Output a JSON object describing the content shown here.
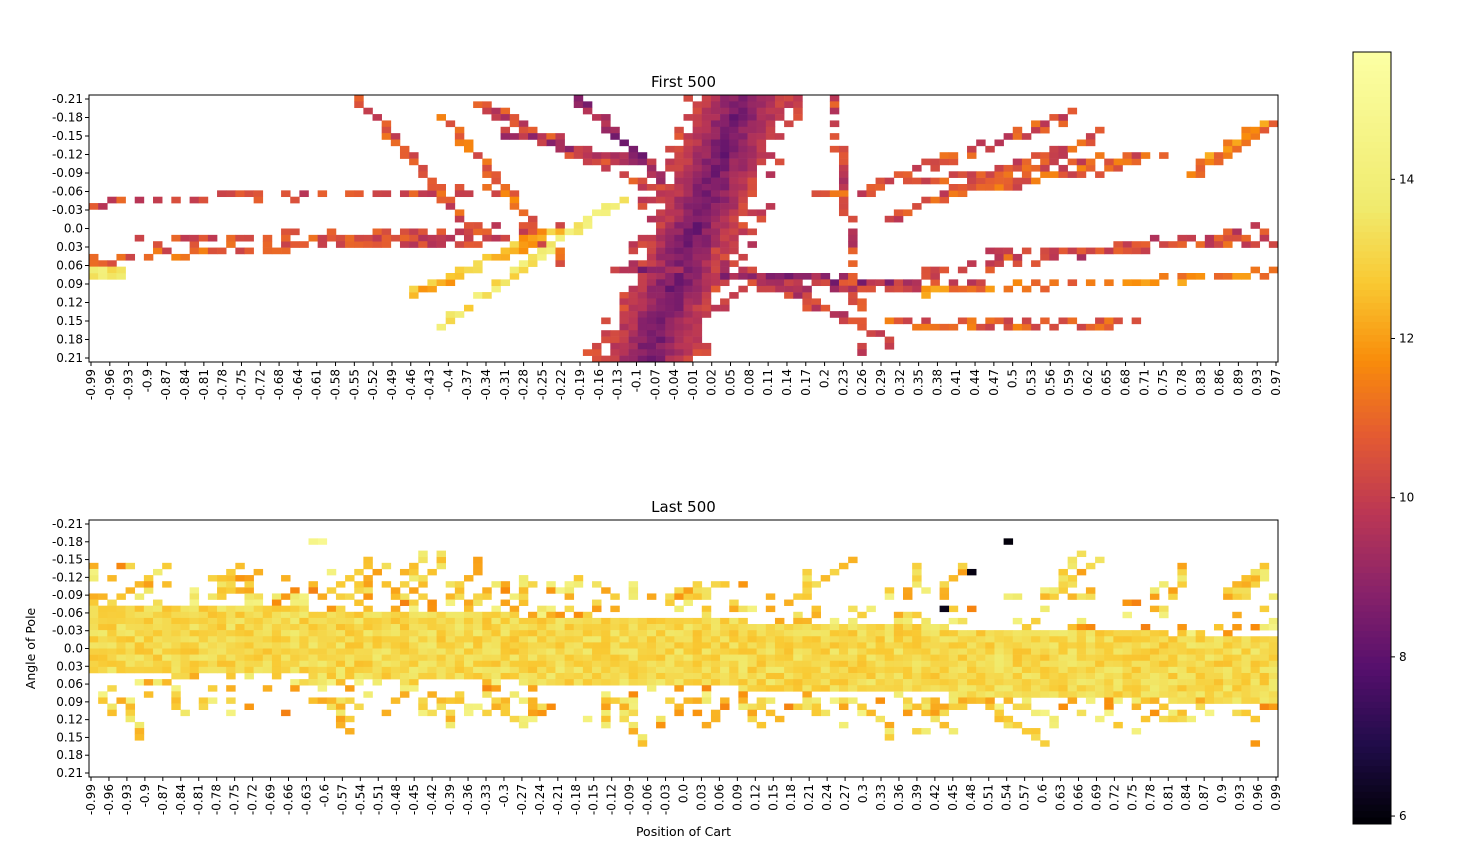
{
  "chart_data": [
    {
      "type": "heatmap",
      "title": "First 500",
      "xlabel": "",
      "ylabel": "",
      "x_tick_labels": [
        "-0.99",
        "-0.96",
        "-0.93",
        "-0.9",
        "-0.87",
        "-0.84",
        "-0.81",
        "-0.78",
        "-0.75",
        "-0.72",
        "-0.68",
        "-0.64",
        "-0.61",
        "-0.58",
        "-0.55",
        "-0.52",
        "-0.49",
        "-0.46",
        "-0.43",
        "-0.4",
        "-0.37",
        "-0.34",
        "-0.31",
        "-0.28",
        "-0.25",
        "-0.22",
        "-0.19",
        "-0.16",
        "-0.13",
        "-0.1",
        "-0.07",
        "-0.04",
        "-0.01",
        "0.02",
        "0.05",
        "0.08",
        "0.11",
        "0.14",
        "0.17",
        "0.2",
        "0.23",
        "0.26",
        "0.29",
        "0.32",
        "0.35",
        "0.38",
        "0.41",
        "0.44",
        "0.47",
        "0.5",
        "0.53",
        "0.56",
        "0.59",
        "0.62",
        "0.65",
        "0.68",
        "0.71",
        "0.75",
        "0.78",
        "0.83",
        "0.86",
        "0.89",
        "0.93",
        "0.97"
      ],
      "y_tick_labels": [
        "-0.21",
        "-0.18",
        "-0.15",
        "-0.12",
        "-0.09",
        "-0.06",
        "-0.03",
        "0.0",
        "0.03",
        "0.06",
        "0.09",
        "0.12",
        "0.15",
        "0.18",
        "0.21"
      ],
      "x_range": [
        -0.99,
        0.99
      ],
      "y_range": [
        -0.21,
        0.21
      ],
      "structure": {
        "band": {
          "x_center_at_top": 0.1,
          "x_center_at_bottom": -0.06,
          "half_width": 0.07,
          "value_center": 8.3,
          "value_edge": 10.2
        },
        "streaks": [
          {
            "from": [
              -0.99,
              -0.04
            ],
            "to": [
              -0.3,
              -0.06
            ],
            "value": 10.5
          },
          {
            "from": [
              -0.99,
              0.05
            ],
            "to": [
              -0.55,
              0.02
            ],
            "value": 10.8
          },
          {
            "from": [
              -0.9,
              0.02
            ],
            "to": [
              -0.2,
              0.0
            ],
            "value": 10.5
          },
          {
            "from": [
              -0.6,
              0.02
            ],
            "to": [
              -0.3,
              0.02
            ],
            "value": 10.4
          },
          {
            "from": [
              -0.35,
              -0.2
            ],
            "to": [
              -0.05,
              -0.06
            ],
            "value": 10.2
          },
          {
            "from": [
              -0.3,
              -0.15
            ],
            "to": [
              -0.05,
              -0.1
            ],
            "value": 9.5
          },
          {
            "from": [
              -0.18,
              -0.21
            ],
            "to": [
              -0.04,
              -0.08
            ],
            "value": 9.0
          },
          {
            "from": [
              -0.4,
              -0.18
            ],
            "to": [
              -0.2,
              0.05
            ],
            "value": 11.0
          },
          {
            "from": [
              -0.55,
              -0.21
            ],
            "to": [
              -0.35,
              0.0
            ],
            "value": 10.5
          },
          {
            "from": [
              -0.45,
              0.1
            ],
            "to": [
              -0.2,
              0.0
            ],
            "value": 12.5
          },
          {
            "from": [
              -0.4,
              0.15
            ],
            "to": [
              -0.1,
              -0.05
            ],
            "value": 13.5
          },
          {
            "from": [
              -0.1,
              0.06
            ],
            "to": [
              0.4,
              0.09
            ],
            "value": 9.0
          },
          {
            "from": [
              0.05,
              0.04
            ],
            "to": [
              0.35,
              0.18
            ],
            "value": 10.0
          },
          {
            "from": [
              0.1,
              0.09
            ],
            "to": [
              0.5,
              0.09
            ],
            "value": 10.0
          },
          {
            "from": [
              0.4,
              0.07
            ],
            "to": [
              0.98,
              0.0
            ],
            "value": 10.2
          },
          {
            "from": [
              0.4,
              0.1
            ],
            "to": [
              0.98,
              0.07
            ],
            "value": 11.5
          },
          {
            "from": [
              0.35,
              0.15
            ],
            "to": [
              0.75,
              0.15
            ],
            "value": 10.8
          },
          {
            "from": [
              0.35,
              -0.02
            ],
            "to": [
              0.7,
              -0.15
            ],
            "value": 10.5
          },
          {
            "from": [
              0.45,
              -0.06
            ],
            "to": [
              0.75,
              -0.1
            ],
            "value": 10.8
          },
          {
            "from": [
              0.3,
              -0.06
            ],
            "to": [
              0.65,
              -0.18
            ],
            "value": 10.5
          },
          {
            "from": [
              0.25,
              -0.2
            ],
            "to": [
              0.3,
              0.2
            ],
            "value": 10.2
          },
          {
            "from": [
              0.2,
              -0.05
            ],
            "to": [
              0.8,
              -0.12
            ],
            "value": 10.6
          },
          {
            "from": [
              0.5,
              0.04
            ],
            "to": [
              0.98,
              0.02
            ],
            "value": 10.5
          },
          {
            "from": [
              0.85,
              -0.09
            ],
            "to": [
              0.98,
              -0.17
            ],
            "value": 11.5
          },
          {
            "from": [
              -0.99,
              0.07
            ],
            "to": [
              -0.93,
              0.07
            ],
            "value": 13.5
          }
        ]
      }
    },
    {
      "type": "heatmap",
      "title": "Last 500",
      "xlabel": "Position of Cart",
      "ylabel": "Angle of Pole",
      "x_tick_labels": [
        "-0.99",
        "-0.96",
        "-0.93",
        "-0.9",
        "-0.87",
        "-0.84",
        "-0.81",
        "-0.78",
        "-0.75",
        "-0.72",
        "-0.69",
        "-0.66",
        "-0.63",
        "-0.6",
        "-0.57",
        "-0.54",
        "-0.51",
        "-0.48",
        "-0.45",
        "-0.42",
        "-0.39",
        "-0.36",
        "-0.33",
        "-0.3",
        "-0.27",
        "-0.24",
        "-0.21",
        "-0.18",
        "-0.15",
        "-0.12",
        "-0.09",
        "-0.06",
        "-0.03",
        "0.0",
        "0.03",
        "0.06",
        "0.09",
        "0.12",
        "0.15",
        "0.18",
        "0.21",
        "0.24",
        "0.27",
        "0.3",
        "0.33",
        "0.36",
        "0.39",
        "0.42",
        "0.45",
        "0.48",
        "0.51",
        "0.54",
        "0.57",
        "0.6",
        "0.63",
        "0.66",
        "0.69",
        "0.72",
        "0.75",
        "0.78",
        "0.81",
        "0.84",
        "0.87",
        "0.9",
        "0.93",
        "0.96",
        "0.99"
      ],
      "y_tick_labels": [
        "-0.21",
        "-0.18",
        "-0.15",
        "-0.12",
        "-0.09",
        "-0.06",
        "-0.03",
        "0.0",
        "0.03",
        "0.06",
        "0.09",
        "0.12",
        "0.15",
        "0.18",
        "0.21"
      ],
      "x_range": [
        -0.99,
        0.99
      ],
      "y_range": [
        -0.21,
        0.21
      ],
      "structure": {
        "band": {
          "y_center_at_left": -0.02,
          "y_center_at_right": 0.035,
          "half_height": 0.055,
          "value_center": 13.1,
          "value_edge": 12.2
        },
        "scatter_value_range": [
          11.5,
          14.5
        ],
        "dark_points": [
          {
            "x": 0.535,
            "y": -0.18,
            "value": 6.0
          },
          {
            "x": 0.48,
            "y": -0.13,
            "value": 6.1
          },
          {
            "x": 0.44,
            "y": -0.07,
            "value": 6.2
          }
        ],
        "bright_points": [
          {
            "x": -0.6,
            "y": -0.17,
            "value": 14.9
          },
          {
            "x": -0.62,
            "y": -0.17,
            "value": 14.6
          }
        ]
      }
    }
  ],
  "colorbar": {
    "colormap": "inferno",
    "range": [
      5.9,
      15.6
    ],
    "tick_labels": [
      "6",
      "8",
      "10",
      "12",
      "14"
    ]
  }
}
